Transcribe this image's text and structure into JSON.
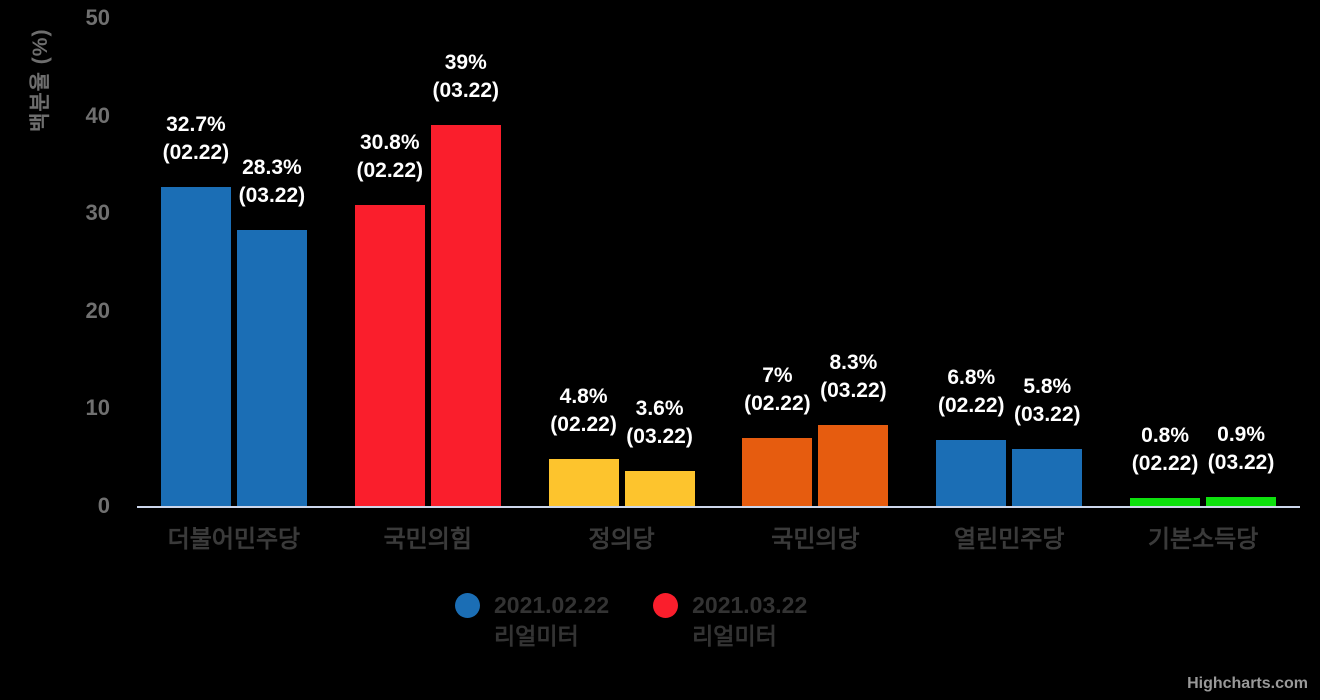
{
  "chart_data": {
    "type": "bar",
    "title": "",
    "categories": [
      "더불어민주당",
      "국민의힘",
      "정의당",
      "국민의당",
      "열린민주당",
      "기본소득당"
    ],
    "point_colors": [
      "#1b6eb5",
      "#fa1e2c",
      "#fdc42d",
      "#e65c0f",
      "#1b6eb5",
      "#0ee00e"
    ],
    "series": [
      {
        "name": "2021.02.22 리얼미터",
        "legend_lines": [
          "2021.02.22",
          "리얼미터"
        ],
        "marker_color": "#1b6eb5",
        "values": [
          32.7,
          30.8,
          4.8,
          7,
          6.8,
          0.8
        ],
        "point_labels": [
          "32.7%",
          "30.8%",
          "4.8%",
          "7%",
          "6.8%",
          "0.8%"
        ],
        "point_sublabel": "(02.22)"
      },
      {
        "name": "2021.03.22 리얼미터",
        "legend_lines": [
          "2021.03.22",
          "리얼미터"
        ],
        "marker_color": "#fa1e2c",
        "values": [
          28.3,
          39,
          3.6,
          8.3,
          5.8,
          0.9
        ],
        "point_labels": [
          "28.3%",
          "39%",
          "3.6%",
          "8.3%",
          "5.8%",
          "0.9%"
        ],
        "point_sublabel": "(03.22)"
      }
    ],
    "ylabel": "백분율 (%)",
    "ylim": [
      0,
      50
    ],
    "yticks": [
      0,
      10,
      20,
      30,
      40,
      50
    ],
    "grid": false,
    "legend_position": "bottom-center",
    "background": "#000000",
    "credits": "Highcharts.com"
  }
}
